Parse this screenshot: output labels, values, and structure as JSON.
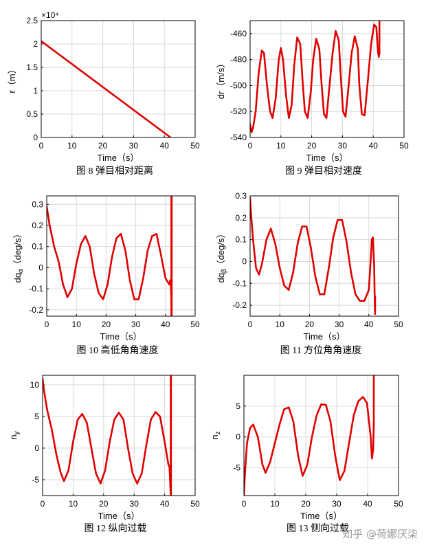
{
  "watermark": "知乎 @荷娜厌柒",
  "colors": {
    "series": "#e00000",
    "grid": "#d9d9d9",
    "axis": "#000000"
  },
  "chart_data": [
    {
      "id": "fig8",
      "type": "line",
      "caption": "图 8 弹目相对距离",
      "xlabel": "Time（s）",
      "ylabel": "r（m）",
      "y_exponent": "×10⁴",
      "xlim": [
        0,
        50
      ],
      "ylim": [
        0,
        2.5
      ],
      "xticks": [
        0,
        10,
        20,
        30,
        40,
        50
      ],
      "yticks": [
        0,
        0.5,
        1,
        1.5,
        2,
        2.5
      ],
      "ytick_labels": [
        "0",
        "0.5",
        "1",
        "1.5",
        "2",
        "2.5"
      ],
      "grid": true,
      "series": [
        {
          "x": [
            0,
            42
          ],
          "y": [
            2.06,
            0
          ]
        }
      ]
    },
    {
      "id": "fig9",
      "type": "line",
      "caption": "图 9 弹目相对速度",
      "xlabel": "Time（s）",
      "ylabel": "dr（m/s）",
      "xlim": [
        0,
        50
      ],
      "ylim": [
        -540,
        -450
      ],
      "xticks": [
        0,
        10,
        20,
        30,
        40,
        50
      ],
      "yticks": [
        -540,
        -520,
        -500,
        -480,
        -460
      ],
      "grid": true,
      "series": [
        {
          "x": [
            0,
            0.5,
            1,
            1.8,
            2.8,
            3.8,
            4.5,
            5.5,
            6.5,
            7.3,
            8.3,
            9.3,
            10,
            10.7,
            11.7,
            12.6,
            13.5,
            14.3,
            15.3,
            16.3,
            17,
            17.8,
            18.7,
            19.7,
            20.5,
            21.5,
            22.5,
            23.2,
            24,
            24.8,
            25.8,
            26.8,
            27.8,
            28.8,
            29.5,
            30.2,
            31,
            32,
            33,
            34,
            35,
            35.5,
            36.3,
            37.2,
            38.3,
            39.3,
            40.3,
            41,
            41.2,
            41.4,
            41.6,
            41.8,
            42,
            42,
            42
          ],
          "y": [
            -530,
            -536,
            -532,
            -520,
            -490,
            -473,
            -475,
            -500,
            -520,
            -525,
            -510,
            -480,
            -471,
            -480,
            -508,
            -525,
            -515,
            -485,
            -463,
            -468,
            -495,
            -520,
            -525,
            -505,
            -480,
            -464,
            -472,
            -498,
            -522,
            -525,
            -500,
            -475,
            -458,
            -465,
            -495,
            -520,
            -524,
            -500,
            -475,
            -462,
            -472,
            -500,
            -522,
            -523,
            -495,
            -468,
            -453,
            -455,
            -462,
            -470,
            -475,
            -478,
            -470,
            -450,
            -476
          ]
        }
      ]
    },
    {
      "id": "fig10",
      "type": "line",
      "caption": "图 10 高低角角速度",
      "xlabel": "Time（s）",
      "ylabel": "dq_α（deg/s）",
      "xlim": [
        0,
        50
      ],
      "ylim": [
        -0.23,
        0.34
      ],
      "xticks": [
        0,
        10,
        20,
        30,
        40,
        50
      ],
      "yticks": [
        -0.2,
        -0.1,
        0,
        0.1,
        0.2,
        0.3
      ],
      "grid": true,
      "series": [
        {
          "x": [
            0,
            1,
            2.5,
            4,
            5.5,
            7,
            8.5,
            10,
            11.5,
            13,
            14.5,
            16,
            17.5,
            19,
            20.5,
            22,
            23.5,
            25,
            26.5,
            28,
            29.5,
            31,
            32.5,
            34,
            35.5,
            37,
            38.5,
            40,
            41.3,
            41.6,
            41.8,
            42,
            42,
            42,
            42.1,
            42.1
          ],
          "y": [
            0.29,
            0.2,
            0.1,
            0.03,
            -0.08,
            -0.14,
            -0.1,
            0.02,
            0.11,
            0.15,
            0.1,
            -0.03,
            -0.12,
            -0.15,
            -0.08,
            0.05,
            0.14,
            0.16,
            0.08,
            -0.06,
            -0.15,
            -0.15,
            -0.05,
            0.08,
            0.15,
            0.16,
            0.06,
            -0.05,
            -0.08,
            -0.06,
            -0.08,
            -0.15,
            0.34,
            -0.23,
            0.34,
            -0.23
          ]
        }
      ]
    },
    {
      "id": "fig11",
      "type": "line",
      "caption": "图 11 方位角角速度",
      "xlabel": "Time（s）",
      "ylabel": "dq_β（deg/s）",
      "xlim": [
        0,
        50
      ],
      "ylim": [
        -0.25,
        0.3
      ],
      "xticks": [
        0,
        10,
        20,
        30,
        40,
        50
      ],
      "yticks": [
        -0.2,
        -0.1,
        0,
        0.1,
        0.2,
        0.3
      ],
      "grid": true,
      "series": [
        {
          "x": [
            0,
            0.3,
            1,
            2,
            3,
            4,
            5.5,
            7,
            8.5,
            10,
            11.5,
            13,
            14.5,
            16,
            17.5,
            19,
            20.5,
            22,
            23.5,
            25,
            26.5,
            28,
            29.5,
            31,
            32.5,
            34,
            35.5,
            37,
            38.5,
            40,
            40.8,
            41,
            41.4,
            41.8,
            42,
            42.1,
            42.1
          ],
          "y": [
            0.29,
            0.22,
            0.1,
            -0.03,
            -0.06,
            -0.01,
            0.1,
            0.15,
            0.08,
            -0.03,
            -0.11,
            -0.13,
            -0.05,
            0.08,
            0.16,
            0.16,
            0.06,
            -0.07,
            -0.15,
            -0.15,
            -0.03,
            0.11,
            0.19,
            0.19,
            0.09,
            -0.05,
            -0.15,
            -0.18,
            -0.18,
            -0.13,
            0.05,
            0.1,
            0.11,
            -0.03,
            -0.18,
            -0.24,
            -0.16
          ]
        }
      ]
    },
    {
      "id": "fig12",
      "type": "line",
      "caption": "图 12 纵向过载",
      "xlabel": "Time（s）",
      "ylabel": "n_y",
      "xlim": [
        0,
        50
      ],
      "ylim": [
        -7.5,
        11.5
      ],
      "xticks": [
        0,
        10,
        20,
        30,
        40,
        50
      ],
      "yticks": [
        -5,
        0,
        5,
        10
      ],
      "grid": true,
      "series": [
        {
          "x": [
            0,
            0.5,
            1.5,
            3,
            4.5,
            6,
            7,
            8.5,
            10,
            11.5,
            13,
            14.5,
            16,
            17.5,
            19,
            20.5,
            22,
            23.5,
            25,
            26.5,
            28,
            29.5,
            31,
            32.5,
            34,
            35.5,
            37,
            38.5,
            40,
            41.2,
            41.6,
            42,
            42,
            42,
            42.1,
            42.1
          ],
          "y": [
            11,
            9,
            6,
            3,
            -1,
            -4,
            -5.2,
            -3.5,
            1,
            4.5,
            5.4,
            4,
            0,
            -4,
            -5.6,
            -3.5,
            1,
            4.5,
            5.6,
            4.5,
            0,
            -4,
            -5.6,
            -4,
            0.5,
            4.5,
            5.7,
            5,
            1,
            -2.5,
            -3,
            -7.5,
            11.5,
            -7.5,
            11.5,
            -7.5
          ]
        }
      ]
    },
    {
      "id": "fig13",
      "type": "line",
      "caption": "图 13 侧向过载",
      "xlabel": "Time（s）",
      "ylabel": "n_z",
      "xlim": [
        0,
        50
      ],
      "ylim": [
        -9.5,
        10
      ],
      "xticks": [
        0,
        10,
        20,
        30,
        40,
        50
      ],
      "yticks": [
        -5,
        0,
        5
      ],
      "grid": true,
      "series": [
        {
          "x": [
            0,
            0.3,
            1,
            2,
            3,
            4.5,
            6,
            7,
            8.5,
            10,
            11.5,
            13,
            14.5,
            16,
            17.5,
            19,
            20.5,
            22,
            23.5,
            25,
            26.5,
            28,
            29.5,
            31,
            32.5,
            34,
            35.5,
            37,
            38.5,
            39.8,
            41,
            41.4,
            41.8,
            42,
            42,
            42.1
          ],
          "y": [
            -9.5,
            -6,
            -1,
            1.5,
            2,
            0,
            -4.5,
            -5.8,
            -4,
            -1,
            2,
            4.5,
            4.8,
            2.5,
            -3,
            -6.3,
            -4.5,
            0,
            3.5,
            5.3,
            5.2,
            2.5,
            -3,
            -7,
            -5.5,
            -1,
            3.5,
            5.8,
            6.5,
            5.5,
            0,
            -3.5,
            -2,
            2,
            10,
            10
          ]
        }
      ]
    }
  ]
}
